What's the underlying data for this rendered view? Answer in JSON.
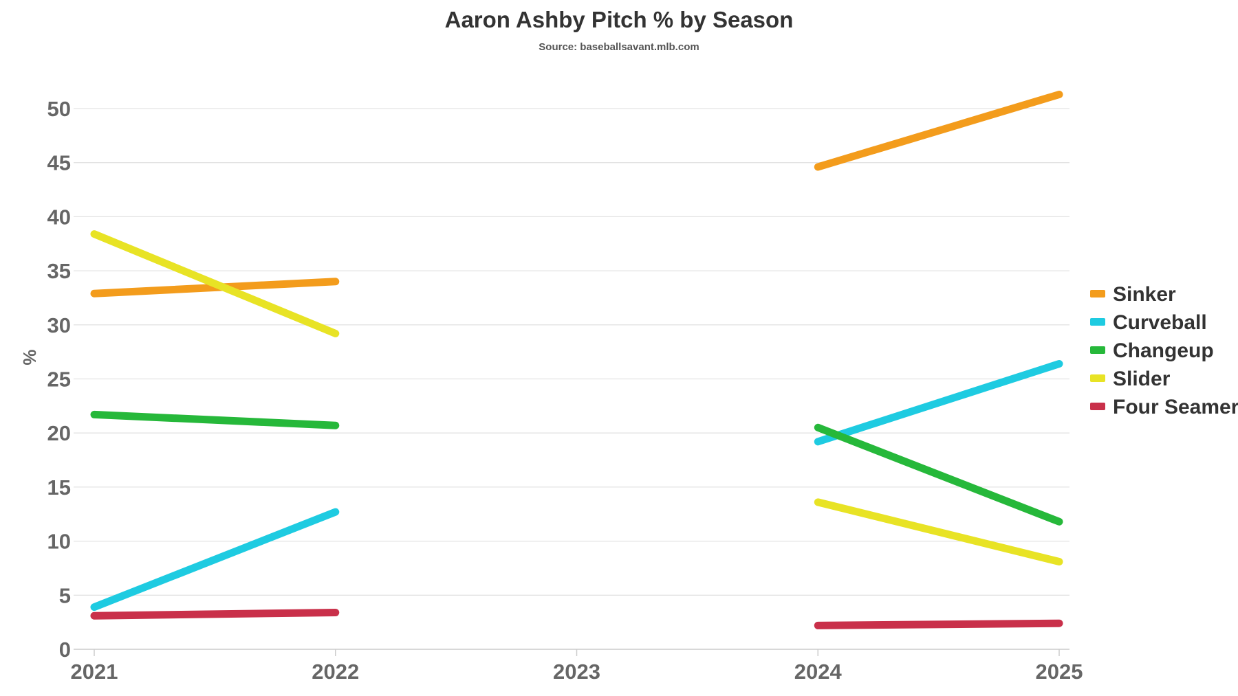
{
  "chart_data": {
    "type": "line",
    "title": "Aaron Ashby Pitch % by Season",
    "subtitle": "Source: baseballsavant.mlb.com",
    "xlabel": "",
    "ylabel": "%",
    "categories": [
      "2021",
      "2022",
      "2023",
      "2024",
      "2025"
    ],
    "ylim": [
      0,
      52
    ],
    "yticks": [
      0,
      5,
      10,
      15,
      20,
      25,
      30,
      35,
      40,
      45,
      50
    ],
    "grid": true,
    "legend_position": "right",
    "series": [
      {
        "name": "Sinker",
        "color": "#f39c1c",
        "values": [
          32.9,
          34.0,
          null,
          44.6,
          51.3
        ]
      },
      {
        "name": "Curveball",
        "color": "#1ecbe1",
        "values": [
          3.9,
          12.7,
          null,
          19.2,
          26.4
        ]
      },
      {
        "name": "Changeup",
        "color": "#26b83a",
        "values": [
          21.7,
          20.7,
          null,
          20.5,
          11.8
        ]
      },
      {
        "name": "Slider",
        "color": "#e8e325",
        "values": [
          38.4,
          29.2,
          null,
          13.6,
          8.1
        ]
      },
      {
        "name": "Four Seamer",
        "color": "#c9304a",
        "values": [
          3.1,
          3.4,
          null,
          2.2,
          2.4
        ]
      }
    ]
  }
}
